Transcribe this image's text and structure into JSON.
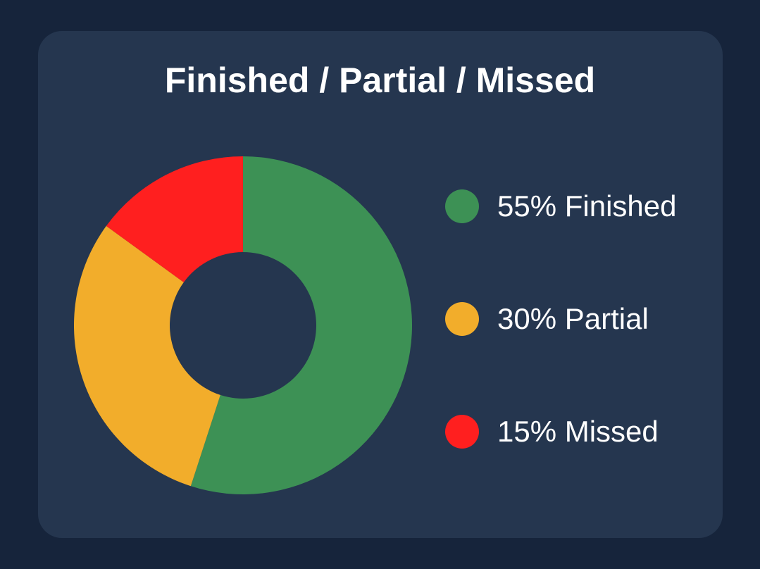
{
  "chart_data": {
    "type": "pie",
    "style": "donut",
    "title": "Finished / Partial / Missed",
    "slices": [
      {
        "label": "55% Finished",
        "value": 55,
        "color": "#3d9155"
      },
      {
        "label": "30% Partial",
        "value": 30,
        "color": "#f2ad2b"
      },
      {
        "label": "15% Missed",
        "value": 15,
        "color": "#ff1f1f"
      }
    ],
    "legend_position": "right"
  },
  "colors": {
    "background": "#16243b",
    "card": "#25364f",
    "text": "#ffffff"
  }
}
